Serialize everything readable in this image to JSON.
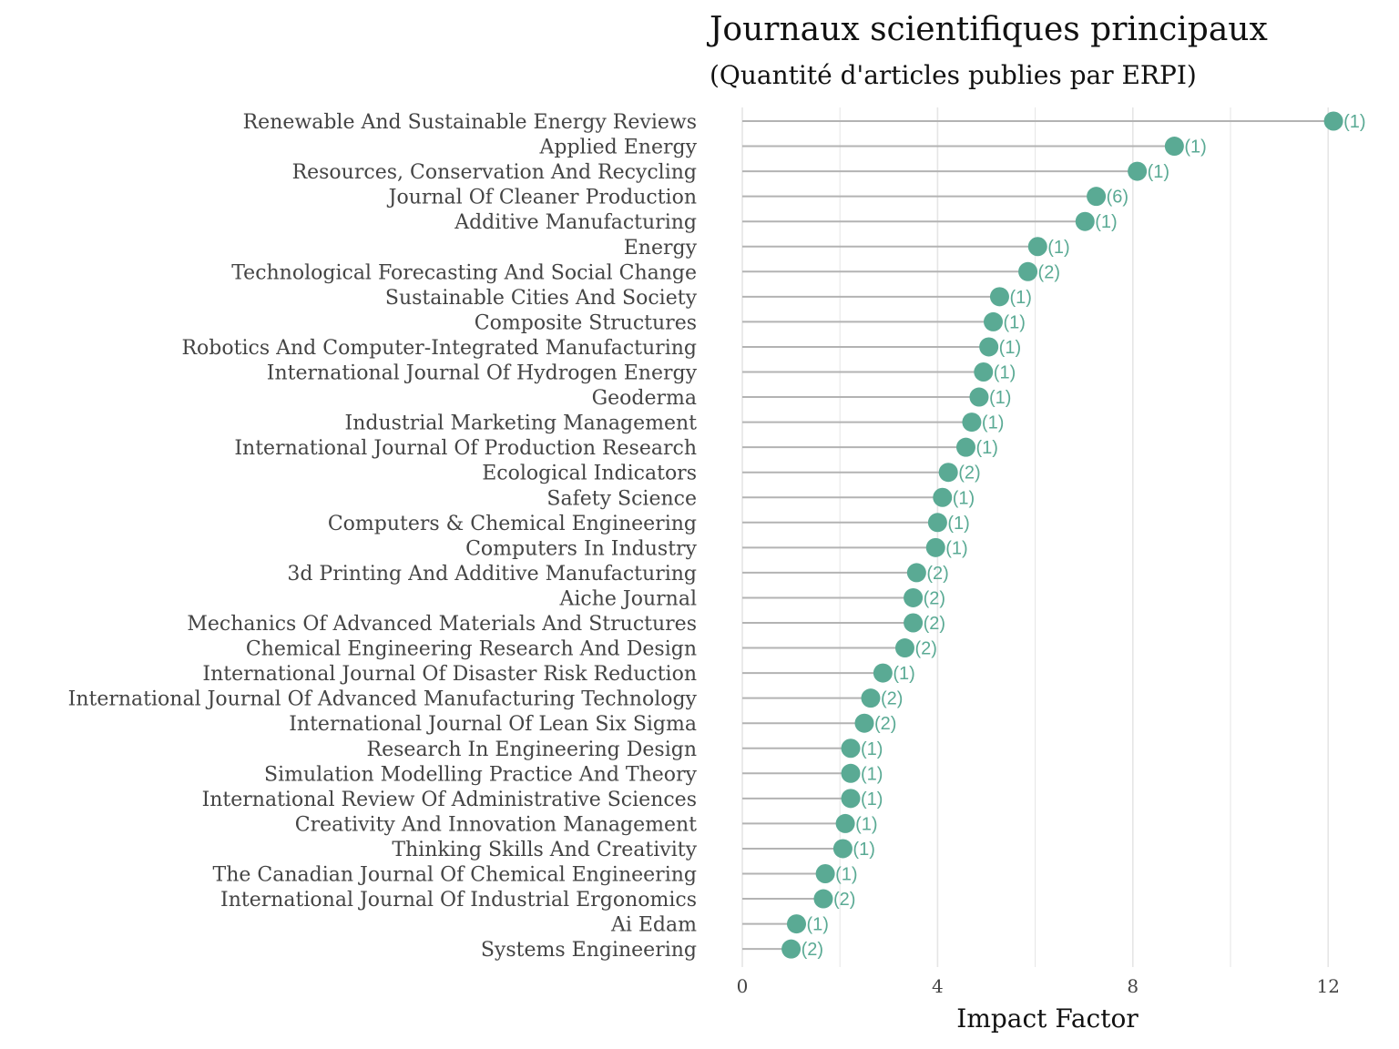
{
  "chart_data": {
    "type": "lollipop",
    "title": "Journaux scientifiques principaux",
    "subtitle": "(Quantité d'articles publies par ERPI)",
    "xlabel": "Impact Factor",
    "ylabel": "",
    "xlim": [
      0,
      12.5
    ],
    "x_ticks": [
      0,
      4,
      8,
      12
    ],
    "x_ticks_labels": [
      "0",
      "4",
      "8",
      "12"
    ],
    "grid": true,
    "colors": {
      "point": "#5aaa94",
      "stem": "#b3b3b3",
      "grid": "#e5e5e5",
      "label": "#5aaa94"
    },
    "categories": [
      "Renewable And Sustainable Energy Reviews",
      "Applied Energy",
      "Resources, Conservation And Recycling",
      "Journal Of Cleaner Production",
      "Additive Manufacturing",
      "Energy",
      "Technological Forecasting And Social Change",
      "Sustainable Cities And Society",
      "Composite Structures",
      "Robotics And Computer-Integrated Manufacturing",
      "International Journal Of Hydrogen Energy",
      "Geoderma",
      "Industrial Marketing Management",
      "International Journal Of Production Research",
      "Ecological Indicators",
      "Safety Science",
      "Computers & Chemical Engineering",
      "Computers In Industry",
      "3d Printing And Additive Manufacturing",
      "Aiche Journal",
      "Mechanics Of Advanced Materials And Structures",
      "Chemical Engineering Research And Design",
      "International Journal Of Disaster Risk Reduction",
      "International Journal Of Advanced Manufacturing Technology",
      "International Journal Of Lean Six Sigma",
      "Research In Engineering Design",
      "Simulation Modelling Practice And Theory",
      "International Review Of Administrative Sciences",
      "Creativity And Innovation Management",
      "Thinking Skills And Creativity",
      "The Canadian Journal Of Chemical Engineering",
      "International Journal Of Industrial Ergonomics",
      "Ai Edam",
      "Systems Engineering"
    ],
    "values": [
      12.11,
      8.85,
      8.09,
      7.25,
      7.02,
      6.05,
      5.85,
      5.27,
      5.14,
      5.05,
      4.94,
      4.85,
      4.7,
      4.58,
      4.22,
      4.1,
      4.0,
      3.96,
      3.57,
      3.5,
      3.5,
      3.33,
      2.88,
      2.63,
      2.5,
      2.22,
      2.22,
      2.22,
      2.11,
      2.06,
      1.7,
      1.66,
      1.11,
      1.0
    ],
    "count_labels": [
      "(1)",
      "(1)",
      "(1)",
      "(6)",
      "(1)",
      "(1)",
      "(2)",
      "(1)",
      "(1)",
      "(1)",
      "(1)",
      "(1)",
      "(1)",
      "(1)",
      "(2)",
      "(1)",
      "(1)",
      "(1)",
      "(2)",
      "(2)",
      "(2)",
      "(2)",
      "(1)",
      "(2)",
      "(2)",
      "(1)",
      "(1)",
      "(1)",
      "(1)",
      "(1)",
      "(1)",
      "(2)",
      "(1)",
      "(2)"
    ]
  }
}
